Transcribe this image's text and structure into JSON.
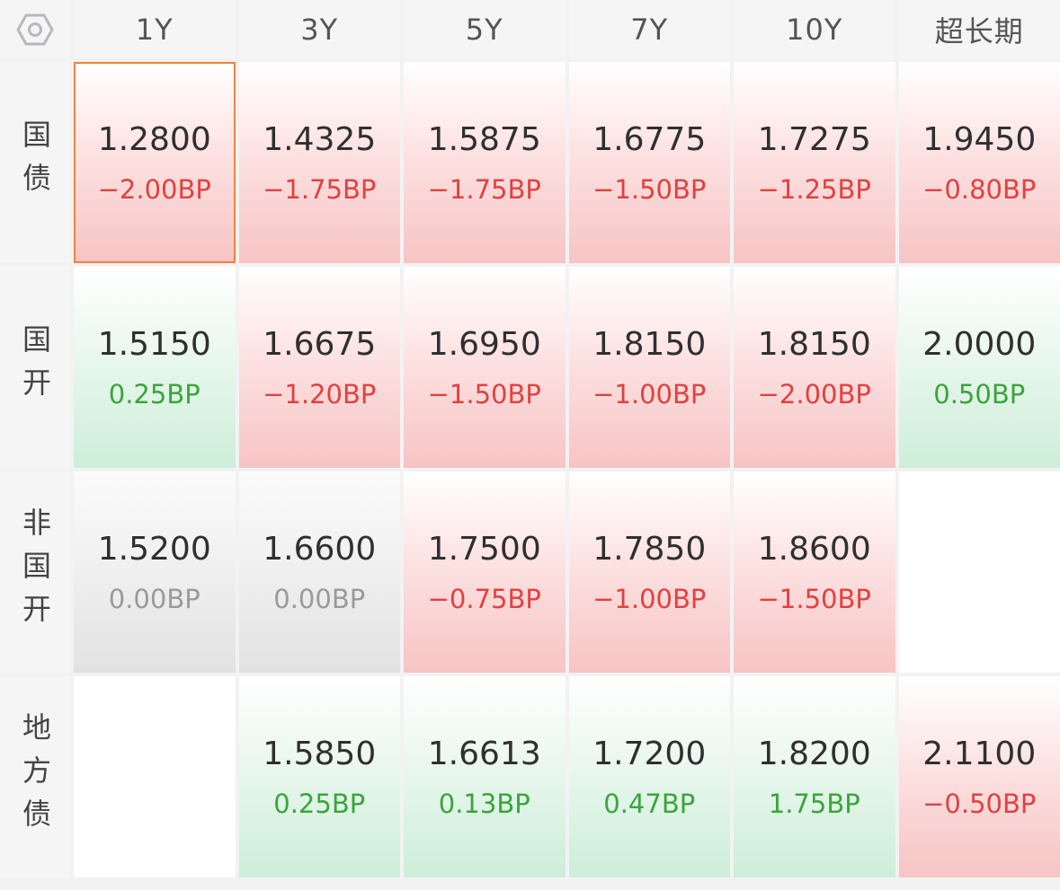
{
  "header": {
    "settings_icon": "settings-hex-icon",
    "columns": [
      "1Y",
      "3Y",
      "5Y",
      "7Y",
      "10Y",
      "超长期"
    ]
  },
  "colors": {
    "down": "#e2403f",
    "up": "#3aa53a",
    "flat": "#9a9a9a",
    "selected_border": "#f0833d"
  },
  "rows": [
    {
      "label": "国债",
      "cells": [
        {
          "rate": "1.2800",
          "change": "−2.00BP",
          "trend": "down",
          "selected": true
        },
        {
          "rate": "1.4325",
          "change": "−1.75BP",
          "trend": "down"
        },
        {
          "rate": "1.5875",
          "change": "−1.75BP",
          "trend": "down"
        },
        {
          "rate": "1.6775",
          "change": "−1.50BP",
          "trend": "down"
        },
        {
          "rate": "1.7275",
          "change": "−1.25BP",
          "trend": "down"
        },
        {
          "rate": "1.9450",
          "change": "−0.80BP",
          "trend": "down"
        }
      ]
    },
    {
      "label": "国开",
      "cells": [
        {
          "rate": "1.5150",
          "change": "0.25BP",
          "trend": "up"
        },
        {
          "rate": "1.6675",
          "change": "−1.20BP",
          "trend": "down"
        },
        {
          "rate": "1.6950",
          "change": "−1.50BP",
          "trend": "down"
        },
        {
          "rate": "1.8150",
          "change": "−1.00BP",
          "trend": "down"
        },
        {
          "rate": "1.8150",
          "change": "−2.00BP",
          "trend": "down"
        },
        {
          "rate": "2.0000",
          "change": "0.50BP",
          "trend": "up"
        }
      ]
    },
    {
      "label": "非国开",
      "cells": [
        {
          "rate": "1.5200",
          "change": "0.00BP",
          "trend": "flat"
        },
        {
          "rate": "1.6600",
          "change": "0.00BP",
          "trend": "flat"
        },
        {
          "rate": "1.7500",
          "change": "−0.75BP",
          "trend": "down"
        },
        {
          "rate": "1.7850",
          "change": "−1.00BP",
          "trend": "down"
        },
        {
          "rate": "1.8600",
          "change": "−1.50BP",
          "trend": "down"
        },
        null
      ]
    },
    {
      "label": "地方债",
      "cells": [
        null,
        {
          "rate": "1.5850",
          "change": "0.25BP",
          "trend": "up"
        },
        {
          "rate": "1.6613",
          "change": "0.13BP",
          "trend": "up"
        },
        {
          "rate": "1.7200",
          "change": "0.47BP",
          "trend": "up"
        },
        {
          "rate": "1.8200",
          "change": "1.75BP",
          "trend": "up"
        },
        {
          "rate": "2.1100",
          "change": "−0.50BP",
          "trend": "down"
        }
      ]
    }
  ]
}
